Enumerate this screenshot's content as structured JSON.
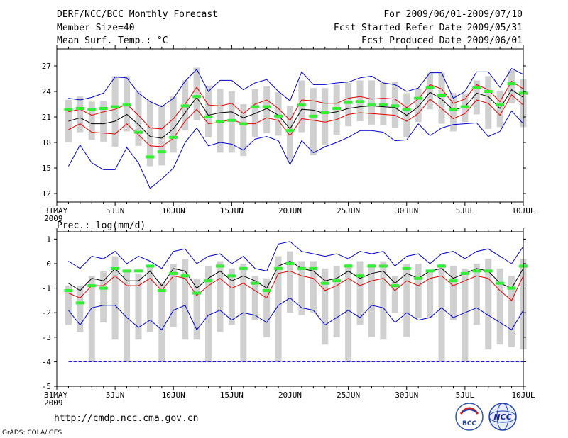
{
  "header": {
    "title": "DERF/NCC/BCC Monthly Forecast",
    "member_size": "Member Size=40",
    "variable": "Mean Surf. Temp.: °C",
    "period": "For 2009/06/01-2009/07/10",
    "started": "Fcst Started Refer Date 2009/05/31",
    "produced": "Fcst Produced Date 2009/06/01"
  },
  "footer": {
    "url": "http://cmdp.ncc.cma.gov.cn",
    "credit": "GrADS: COLA/IGES",
    "logo1_text": "BCC",
    "logo2_text": "NCC"
  },
  "x_axis": {
    "year": "2009",
    "ticks": [
      {
        "day": 0,
        "label": "31MAY"
      },
      {
        "day": 5,
        "label": "5JUN"
      },
      {
        "day": 10,
        "label": "10JUN"
      },
      {
        "day": 15,
        "label": "15JUN"
      },
      {
        "day": 20,
        "label": "20JUN"
      },
      {
        "day": 25,
        "label": "25JUN"
      },
      {
        "day": 30,
        "label": "30JUN"
      },
      {
        "day": 35,
        "label": "5JUL"
      },
      {
        "day": 40,
        "label": "10JUL"
      }
    ]
  },
  "colors": {
    "max_min": "#0000cc",
    "spread": "#e00000",
    "mean": "#000000",
    "median": "#33ee33",
    "box": "#d0d0d0",
    "floor": "#0000cc"
  },
  "chart_data": [
    {
      "type": "box-ensemble",
      "title": "Mean Surf. Temp.: °C",
      "x": [
        1,
        2,
        3,
        4,
        5,
        6,
        7,
        8,
        9,
        10,
        11,
        12,
        13,
        14,
        15,
        16,
        17,
        18,
        19,
        20,
        21,
        22,
        23,
        24,
        25,
        26,
        27,
        28,
        29,
        30,
        31,
        32,
        33,
        34,
        35,
        36,
        37,
        38,
        39,
        40
      ],
      "xlim": [
        0,
        40
      ],
      "ylim": [
        11,
        29
      ],
      "yticks": [
        12,
        15,
        18,
        21,
        24,
        27
      ],
      "series": [
        {
          "name": "max",
          "values": [
            23.2,
            23.0,
            23.3,
            23.8,
            25.7,
            25.6,
            23.8,
            22.8,
            22.2,
            23.2,
            25.2,
            26.6,
            24.0,
            25.3,
            25.3,
            24.2,
            25.0,
            25.4,
            24.0,
            22.9,
            26.3,
            24.8,
            24.8,
            25.0,
            25.1,
            25.6,
            25.8,
            25.0,
            24.8,
            24.0,
            24.4,
            26.2,
            26.2,
            23.2,
            24.0,
            26.3,
            26.3,
            24.5,
            26.7,
            26.0
          ]
        },
        {
          "name": "spread_high",
          "values": [
            21.6,
            21.9,
            21.2,
            21.6,
            21.9,
            22.5,
            21.2,
            19.7,
            19.6,
            20.8,
            22.5,
            24.5,
            22.4,
            22.3,
            22.6,
            21.4,
            22.5,
            23.0,
            22.0,
            20.6,
            23.0,
            22.9,
            22.6,
            22.6,
            23.2,
            23.4,
            23.1,
            23.2,
            23.1,
            22.1,
            23.1,
            24.8,
            24.3,
            22.6,
            23.1,
            24.8,
            24.2,
            22.8,
            25.2,
            24.3
          ]
        },
        {
          "name": "mean",
          "values": [
            20.5,
            20.9,
            20.2,
            20.2,
            20.5,
            21.3,
            20.1,
            18.7,
            18.5,
            19.6,
            21.5,
            23.3,
            21.2,
            21.5,
            21.6,
            20.9,
            21.4,
            22.0,
            21.2,
            19.6,
            21.9,
            21.8,
            21.4,
            21.6,
            22.0,
            22.2,
            22.3,
            22.2,
            22.1,
            21.2,
            22.2,
            23.9,
            23.1,
            21.8,
            22.2,
            23.8,
            23.4,
            22.0,
            24.2,
            23.3
          ]
        },
        {
          "name": "spread_low",
          "values": [
            19.5,
            20.2,
            19.2,
            19.1,
            19.0,
            20.2,
            18.9,
            17.6,
            17.5,
            18.5,
            20.5,
            21.9,
            20.2,
            20.4,
            20.7,
            20.2,
            20.2,
            20.9,
            20.6,
            18.8,
            20.8,
            20.6,
            20.4,
            20.7,
            21.3,
            21.5,
            21.4,
            21.3,
            21.2,
            20.5,
            21.4,
            23.1,
            22.0,
            20.8,
            21.4,
            23.0,
            22.6,
            21.2,
            23.6,
            22.4
          ]
        },
        {
          "name": "min",
          "values": [
            15.2,
            17.7,
            15.6,
            14.8,
            14.8,
            17.4,
            15.6,
            12.6,
            13.7,
            15.0,
            18.0,
            19.7,
            17.6,
            18.0,
            17.8,
            17.1,
            18.4,
            18.7,
            18.2,
            15.4,
            18.2,
            16.8,
            17.5,
            18.0,
            18.6,
            19.4,
            19.4,
            19.2,
            18.2,
            18.3,
            20.2,
            18.8,
            19.7,
            20.1,
            20.2,
            20.3,
            18.7,
            19.3,
            21.7,
            20.2
          ]
        },
        {
          "name": "median",
          "values": [
            21.9,
            22.0,
            21.9,
            22.0,
            22.2,
            22.4,
            19.2,
            16.3,
            16.9,
            18.6,
            22.3,
            23.4,
            21.0,
            20.5,
            20.6,
            20.2,
            22.2,
            22.2,
            21.1,
            19.4,
            22.4,
            21.1,
            21.5,
            22.0,
            22.7,
            22.8,
            22.4,
            22.5,
            22.3,
            21.9,
            23.2,
            24.5,
            23.5,
            21.9,
            22.2,
            24.5,
            24.0,
            22.4,
            24.9,
            23.8
          ]
        },
        {
          "name": "box_high",
          "values": [
            23.0,
            23.4,
            22.8,
            22.9,
            25.8,
            25.8,
            24.0,
            22.9,
            22.4,
            23.4,
            25.3,
            26.8,
            24.7,
            24.3,
            24.0,
            22.5,
            24.3,
            24.6,
            23.9,
            22.3,
            25.3,
            24.4,
            24.4,
            24.8,
            25.0,
            25.3,
            25.3,
            25.0,
            25.1,
            23.8,
            24.3,
            26.2,
            26.2,
            23.8,
            23.8,
            25.3,
            25.8,
            24.1,
            26.5,
            25.5
          ]
        },
        {
          "name": "box_low",
          "values": [
            18.0,
            19.2,
            18.3,
            18.1,
            17.5,
            19.3,
            17.6,
            15.2,
            15.3,
            16.8,
            19.4,
            20.6,
            18.6,
            16.8,
            16.8,
            16.4,
            18.6,
            19.1,
            18.8,
            15.8,
            19.2,
            16.5,
            17.7,
            18.9,
            19.9,
            20.5,
            20.1,
            20.0,
            19.7,
            18.6,
            20.4,
            21.9,
            20.2,
            19.3,
            20.4,
            21.3,
            19.6,
            19.8,
            22.6,
            19.8
          ]
        }
      ]
    },
    {
      "type": "box-ensemble",
      "title": "Prec.: log(mm/d)",
      "x": [
        1,
        2,
        3,
        4,
        5,
        6,
        7,
        8,
        9,
        10,
        11,
        12,
        13,
        14,
        15,
        16,
        17,
        18,
        19,
        20,
        21,
        22,
        23,
        24,
        25,
        26,
        27,
        28,
        29,
        30,
        31,
        32,
        33,
        34,
        35,
        36,
        37,
        38,
        39,
        40
      ],
      "xlim": [
        0,
        40
      ],
      "ylim": [
        -5,
        1.3
      ],
      "yticks": [
        1,
        0,
        -1,
        -2,
        -3,
        -4,
        -5
      ],
      "series": [
        {
          "name": "max",
          "values": [
            0.1,
            -0.2,
            0.3,
            0.2,
            0.5,
            0.0,
            0.3,
            0.1,
            -0.2,
            0.5,
            0.6,
            0.0,
            0.3,
            0.4,
            0.0,
            0.3,
            -0.2,
            -0.3,
            0.8,
            0.9,
            0.5,
            0.4,
            0.3,
            0.4,
            0.2,
            0.5,
            0.4,
            0.5,
            -0.1,
            0.3,
            0.4,
            0.0,
            0.4,
            0.5,
            0.2,
            0.5,
            0.6,
            0.3,
            0.0,
            0.7
          ]
        },
        {
          "name": "mean",
          "values": [
            -0.8,
            -1.1,
            -0.6,
            -0.7,
            -0.2,
            -0.7,
            -0.7,
            -0.3,
            -0.9,
            -0.2,
            -0.3,
            -1.0,
            -0.6,
            -0.3,
            -0.7,
            -0.5,
            -0.7,
            -1.0,
            -0.1,
            0.1,
            -0.2,
            -0.3,
            -0.7,
            -0.6,
            -0.3,
            -0.6,
            -0.4,
            -0.3,
            -0.8,
            -0.4,
            -0.6,
            -0.3,
            -0.2,
            -0.6,
            -0.4,
            -0.2,
            -0.3,
            -0.8,
            -1.0,
            -0.2
          ]
        },
        {
          "name": "spread_low",
          "values": [
            -1.2,
            -1.4,
            -0.9,
            -0.9,
            -0.5,
            -0.9,
            -0.9,
            -0.6,
            -1.1,
            -0.5,
            -0.6,
            -1.3,
            -0.9,
            -0.6,
            -1.0,
            -0.8,
            -1.1,
            -1.4,
            -0.4,
            -0.3,
            -0.5,
            -0.6,
            -1.1,
            -0.9,
            -0.6,
            -0.9,
            -0.7,
            -0.6,
            -1.1,
            -0.7,
            -0.9,
            -0.6,
            -0.5,
            -0.9,
            -0.7,
            -0.5,
            -0.6,
            -1.1,
            -1.5,
            -0.5
          ]
        },
        {
          "name": "min",
          "values": [
            -1.9,
            -2.5,
            -1.8,
            -1.7,
            -1.7,
            -2.2,
            -2.6,
            -2.3,
            -2.7,
            -1.9,
            -1.7,
            -2.7,
            -2.1,
            -1.9,
            -2.3,
            -2.0,
            -2.1,
            -2.4,
            -1.7,
            -1.4,
            -1.8,
            -1.9,
            -2.5,
            -2.2,
            -1.9,
            -2.2,
            -1.7,
            -1.8,
            -2.4,
            -2.0,
            -2.3,
            -2.2,
            -1.8,
            -2.2,
            -2.0,
            -1.8,
            -2.1,
            -2.4,
            -2.7,
            -1.9
          ]
        },
        {
          "name": "median",
          "values": [
            -1.1,
            -1.6,
            -0.9,
            -1.0,
            -0.2,
            -0.3,
            -0.3,
            -0.1,
            -1.1,
            -0.4,
            -0.5,
            -1.2,
            -0.7,
            -0.1,
            -0.5,
            -0.2,
            -0.8,
            -1.1,
            -0.2,
            0.0,
            -0.2,
            -0.2,
            -0.8,
            -0.7,
            -0.1,
            -0.5,
            -0.1,
            -0.1,
            -0.9,
            -0.2,
            -0.6,
            -0.3,
            -0.1,
            -0.7,
            -0.4,
            -0.3,
            -0.3,
            -0.8,
            -1.0,
            -0.1
          ]
        },
        {
          "name": "box_high",
          "values": [
            -0.9,
            -0.9,
            -0.5,
            -0.3,
            0.3,
            -0.3,
            -0.4,
            -0.1,
            -0.8,
            0.0,
            0.2,
            -0.6,
            -0.1,
            0.1,
            -0.2,
            0.0,
            -0.5,
            -0.6,
            0.3,
            0.5,
            0.1,
            0.1,
            -0.2,
            -0.1,
            0.0,
            0.1,
            0.0,
            0.1,
            -0.5,
            0.0,
            0.0,
            -0.3,
            0.0,
            -0.1,
            -0.2,
            0.0,
            0.2,
            -0.2,
            -0.5,
            0.2
          ]
        },
        {
          "name": "box_low",
          "values": [
            -2.5,
            -2.8,
            -4.0,
            -2.4,
            -3.1,
            -4.0,
            -3.1,
            -2.8,
            -4.0,
            -2.6,
            -3.1,
            -3.1,
            -4.0,
            -2.8,
            -2.5,
            -4.0,
            -2.3,
            -3.0,
            -4.0,
            -2.0,
            -2.1,
            -2.0,
            -3.3,
            -3.0,
            -4.0,
            -2.5,
            -3.0,
            -3.1,
            -2.0,
            -3.0,
            -2.2,
            -2.2,
            -4.0,
            -2.3,
            -4.0,
            -2.5,
            -3.5,
            -3.3,
            -3.4,
            -3.5
          ]
        },
        {
          "name": "floor",
          "values": [
            -4.0,
            -4.0
          ]
        }
      ]
    }
  ]
}
